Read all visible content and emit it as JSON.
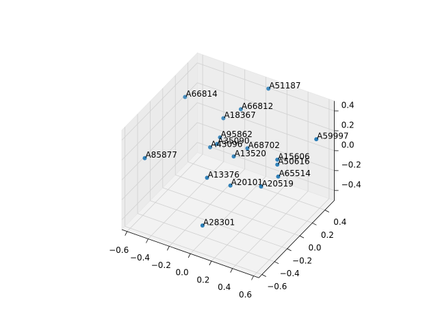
{
  "chart_data": {
    "type": "scatter3d",
    "color": "#1f77b4",
    "labels": [
      "A51187",
      "A66814",
      "A66812",
      "A18367",
      "A59997",
      "A95862",
      "A35090",
      "A43096",
      "A68702",
      "A13520",
      "A85877",
      "A15606",
      "A50616",
      "A13376",
      "A65514",
      "A20101",
      "A20519",
      "A28301"
    ],
    "x": [
      0.03,
      -0.57,
      -0.16,
      -0.29,
      0.58,
      -0.25,
      -0.26,
      -0.32,
      -0.05,
      -0.09,
      -0.57,
      0.24,
      0.24,
      -0.2,
      0.26,
      -0.05,
      0.14,
      -0.04
    ],
    "y": [
      0.54,
      0.22,
      0.42,
      0.36,
      0.38,
      0.24,
      0.21,
      0.2,
      0.34,
      0.19,
      -0.42,
      0.33,
      0.33,
      -0.05,
      0.31,
      0.07,
      0.24,
      -0.39
    ],
    "z": [
      0.4,
      0.3,
      0.2,
      0.1,
      0.2,
      0,
      -0.05,
      -0.1,
      -0.1,
      -0.1,
      0.1,
      -0.1,
      -0.15,
      -0.2,
      -0.25,
      -0.3,
      -0.35,
      -0.4
    ],
    "xlim": [
      -0.65,
      0.65
    ],
    "ylim": [
      -0.65,
      0.55
    ],
    "zlim": [
      -0.5,
      0.5
    ],
    "xticks": [
      {
        "value": -0.6,
        "label": "−0.6"
      },
      {
        "value": -0.4,
        "label": "−0.4"
      },
      {
        "value": -0.2,
        "label": "−0.2"
      },
      {
        "value": 0,
        "label": "0.0"
      },
      0.2,
      0.4,
      0.6
    ],
    "yticks": [
      {
        "value": -0.6,
        "label": "−0.6"
      },
      {
        "value": -0.4,
        "label": "−0.4"
      },
      {
        "value": -0.2,
        "label": "−0.2"
      },
      {
        "value": 0,
        "label": "0.0"
      },
      0.2,
      0.4
    ],
    "zticks": [
      {
        "value": -0.4,
        "label": "−0.4"
      },
      {
        "value": -0.2,
        "label": "−0.2"
      },
      {
        "value": 0,
        "label": "0.0"
      },
      0.2,
      0.4
    ],
    "grid": true
  }
}
